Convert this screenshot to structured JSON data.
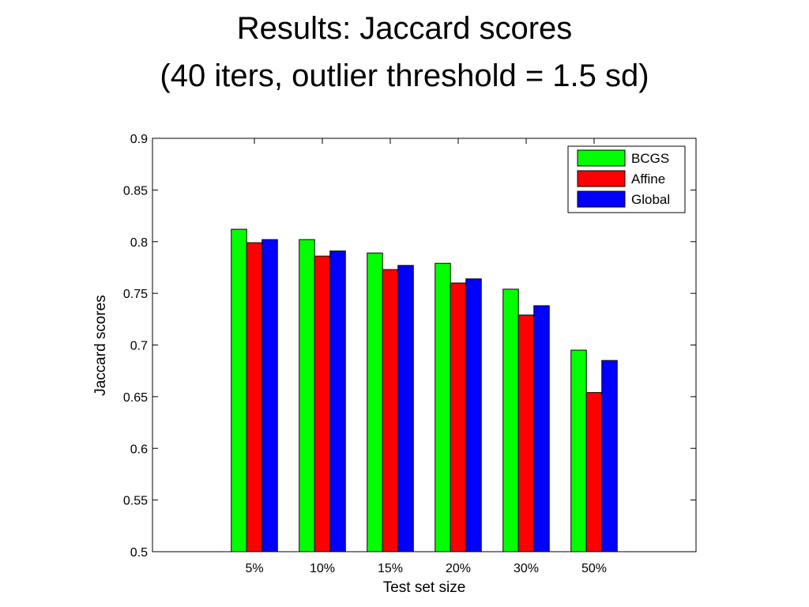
{
  "slide": {
    "title_line_1": "Results: Jaccard scores",
    "title_line_2": "(40 iters, outlier threshold = 1.5 sd)"
  },
  "chart_data": {
    "type": "bar",
    "title": "",
    "xlabel": "Test set size",
    "ylabel": "Jaccard scores",
    "categories": [
      "5%",
      "10%",
      "15%",
      "20%",
      "30%",
      "50%"
    ],
    "ylim": [
      0.5,
      0.9
    ],
    "yticks": [
      "0.5",
      "0.55",
      "0.6",
      "0.65",
      "0.7",
      "0.75",
      "0.8",
      "0.85",
      "0.9"
    ],
    "grid": false,
    "legend_position": "top-right",
    "series": [
      {
        "name": "BCGS",
        "color": "#00ff00",
        "values": [
          0.812,
          0.802,
          0.789,
          0.779,
          0.754,
          0.695
        ]
      },
      {
        "name": "Affine",
        "color": "#ff0000",
        "values": [
          0.799,
          0.786,
          0.773,
          0.76,
          0.729,
          0.654
        ]
      },
      {
        "name": "Global",
        "color": "#0000ff",
        "values": [
          0.802,
          0.791,
          0.777,
          0.764,
          0.738,
          0.685
        ]
      }
    ]
  }
}
